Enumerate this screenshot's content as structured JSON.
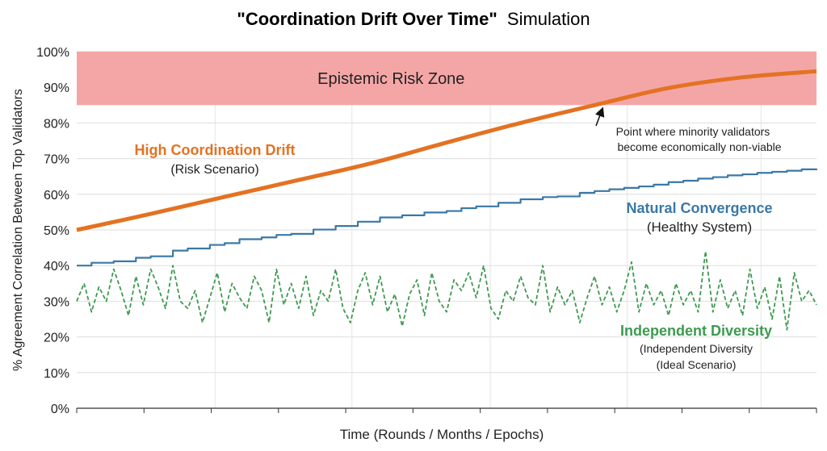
{
  "chart_data": {
    "type": "line",
    "title": {
      "bold": "\"Coordination Drift Over Time\"",
      "normal": "Simulation"
    },
    "xlabel": "Time (Rounds / Months / Epochs)",
    "ylabel": "% Agreement Correlation Between Top Validators",
    "ylim": [
      0,
      100
    ],
    "xlim": [
      0,
      100
    ],
    "y_ticks": [
      "0%",
      "10%",
      "20%",
      "30%",
      "40%",
      "50%",
      "60%",
      "70%",
      "80%",
      "90%",
      "100%"
    ],
    "risk_zone": {
      "label": "Epistemic Risk Zone",
      "y_from": 85,
      "y_to": 100,
      "color": "#f4a6a6"
    },
    "annotation": {
      "line1": "Point where minority validators",
      "line2": "become economically non-viable",
      "target": {
        "x": 70.5,
        "y": 85
      }
    },
    "series": [
      {
        "name": "High Coordination Drift",
        "subtitle": "(Risk Scenario)",
        "color": "#e37222",
        "style": "solid-thick",
        "x": [
          0,
          10,
          20,
          30,
          40,
          50,
          60,
          70,
          80,
          90,
          100
        ],
        "y": [
          50.0,
          54.5,
          59.3,
          64.0,
          68.8,
          74.5,
          80.0,
          85.0,
          89.8,
          92.8,
          94.5
        ]
      },
      {
        "name": "Natural Convergence",
        "subtitle": "(Healthy System)",
        "color": "#3a78a6",
        "style": "step",
        "x": [
          0,
          2,
          5,
          8,
          10,
          13,
          15,
          18,
          20,
          22,
          25,
          27,
          29,
          32,
          35,
          38,
          41,
          44,
          47,
          50,
          52,
          54,
          57,
          60,
          63,
          65,
          68,
          70,
          72,
          74,
          76,
          78,
          80,
          82,
          84,
          86,
          88,
          90,
          92,
          94,
          96,
          98,
          100
        ],
        "y": [
          40.0,
          40.8,
          41.2,
          42.2,
          42.6,
          44.2,
          44.8,
          45.8,
          46.3,
          47.4,
          47.9,
          48.6,
          48.9,
          50.1,
          51.1,
          52.3,
          53.5,
          54.1,
          54.9,
          55.3,
          56.1,
          56.6,
          57.6,
          58.6,
          59.2,
          59.4,
          60.4,
          60.9,
          61.4,
          61.8,
          62.2,
          62.7,
          63.4,
          63.8,
          64.4,
          64.8,
          65.3,
          65.6,
          66.0,
          66.3,
          66.6,
          67.0,
          67.2
        ]
      },
      {
        "name": "Independent Diversity",
        "subtitle": "(Independent Diversity",
        "subtitle2": "(Ideal Scenario)",
        "color": "#3d9a4f",
        "style": "dashed",
        "x": [
          0,
          1,
          2,
          3,
          4,
          5,
          6,
          7,
          8,
          9,
          10,
          11,
          12,
          13,
          14,
          15,
          16,
          17,
          18,
          19,
          20,
          21,
          22,
          23,
          24,
          25,
          26,
          27,
          28,
          29,
          30,
          31,
          32,
          33,
          34,
          35,
          36,
          37,
          38,
          39,
          40,
          41,
          42,
          43,
          44,
          45,
          46,
          47,
          48,
          49,
          50,
          51,
          52,
          53,
          54,
          55,
          56,
          57,
          58,
          59,
          60,
          61,
          62,
          63,
          64,
          65,
          66,
          67,
          68,
          69,
          70,
          71,
          72,
          73,
          74,
          75,
          76,
          77,
          78,
          79,
          80,
          81,
          82,
          83,
          84,
          85,
          86,
          87,
          88,
          89,
          90,
          91,
          92,
          93,
          94,
          95,
          96,
          97,
          98,
          99,
          100
        ],
        "y": [
          30,
          35,
          27,
          34,
          30,
          39,
          33,
          26,
          37,
          29,
          39,
          34,
          28,
          40,
          30,
          28,
          33,
          24,
          31,
          38,
          27,
          35,
          31,
          28,
          37,
          33,
          24,
          39,
          29,
          35,
          28,
          37,
          26,
          33,
          30,
          39,
          28,
          24,
          33,
          38,
          29,
          37,
          27,
          32,
          23,
          32,
          36,
          26,
          38,
          30,
          27,
          36,
          33,
          38,
          31,
          40,
          28,
          25,
          33,
          30,
          37,
          31,
          29,
          40,
          27,
          34,
          29,
          33,
          24,
          31,
          37,
          29,
          34,
          27,
          33,
          41,
          27,
          35,
          29,
          33,
          26,
          35,
          29,
          33,
          27,
          44,
          27,
          36,
          28,
          33,
          26,
          39,
          28,
          34,
          25,
          37,
          22,
          38,
          30,
          33,
          29
        ]
      }
    ],
    "labels": {
      "high_name": "High Coordination Drift",
      "high_sub": "(Risk Scenario)",
      "natural_name": "Natural Convergence",
      "natural_sub": "(Healthy System)",
      "diversity_name": "Independent Diversity",
      "diversity_sub1": "(Independent Diversity",
      "diversity_sub2": "(Ideal Scenario)"
    }
  }
}
